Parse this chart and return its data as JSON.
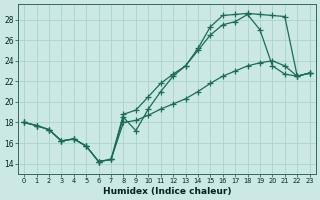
{
  "xlabel": "Humidex (Indice chaleur)",
  "bg_color": "#cce8e4",
  "grid_color": "#aad4ce",
  "line_color": "#1a6b5a",
  "xlim": [
    -0.5,
    23.5
  ],
  "ylim": [
    13.0,
    29.5
  ],
  "yticks": [
    14,
    16,
    18,
    20,
    22,
    24,
    26,
    28
  ],
  "xticks": [
    0,
    1,
    2,
    3,
    4,
    5,
    6,
    7,
    8,
    9,
    10,
    11,
    12,
    13,
    14,
    15,
    16,
    17,
    18,
    19,
    20,
    21,
    22,
    23
  ],
  "line_top_x": [
    0,
    1,
    2,
    3,
    4,
    5,
    6,
    7,
    8,
    9,
    10,
    11,
    12,
    13,
    14,
    15,
    16,
    17,
    18,
    19,
    20,
    21,
    22,
    23
  ],
  "line_top_y": [
    18.0,
    17.7,
    17.3,
    16.2,
    16.4,
    15.7,
    14.2,
    14.4,
    18.8,
    19.2,
    20.5,
    21.8,
    22.7,
    23.5,
    25.2,
    27.3,
    28.4,
    28.5,
    28.6,
    28.5,
    28.4,
    28.3,
    22.5,
    22.8
  ],
  "line_mid_x": [
    0,
    1,
    2,
    3,
    4,
    5,
    6,
    7,
    8,
    9,
    10,
    11,
    12,
    13,
    14,
    15,
    16,
    17,
    18,
    19,
    20,
    21,
    22,
    23
  ],
  "line_mid_y": [
    18.0,
    17.7,
    17.3,
    16.2,
    16.4,
    15.7,
    14.2,
    14.4,
    18.5,
    17.2,
    19.3,
    21.0,
    22.5,
    23.5,
    25.0,
    26.5,
    27.5,
    27.8,
    28.5,
    27.0,
    23.5,
    22.7,
    22.5,
    22.8
  ],
  "line_bot_x": [
    0,
    1,
    2,
    3,
    4,
    5,
    6,
    7,
    8,
    9,
    10,
    11,
    12,
    13,
    14,
    15,
    16,
    17,
    18,
    19,
    20,
    21,
    22,
    23
  ],
  "line_bot_y": [
    18.0,
    17.7,
    17.3,
    16.2,
    16.4,
    15.7,
    14.2,
    14.4,
    18.0,
    18.2,
    18.7,
    19.3,
    19.8,
    20.3,
    21.0,
    21.8,
    22.5,
    23.0,
    23.5,
    23.8,
    24.0,
    23.5,
    22.5,
    22.8
  ]
}
